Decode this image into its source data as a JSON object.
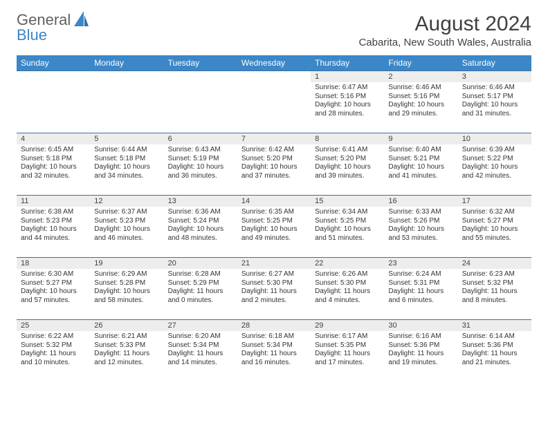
{
  "brand": {
    "line1": "General",
    "line2": "Blue"
  },
  "title": "August 2024",
  "location": "Cabarita, New South Wales, Australia",
  "weekdays": [
    "Sunday",
    "Monday",
    "Tuesday",
    "Wednesday",
    "Thursday",
    "Friday",
    "Saturday"
  ],
  "colors": {
    "header_bg": "#3b87c8",
    "header_fg": "#ffffff",
    "daynum_bg": "#ededed",
    "rule": "#3b6fa0",
    "body_text": "#333333"
  },
  "weeks": [
    [
      {
        "n": "",
        "sunrise": "",
        "sunset": "",
        "daylight": ""
      },
      {
        "n": "",
        "sunrise": "",
        "sunset": "",
        "daylight": ""
      },
      {
        "n": "",
        "sunrise": "",
        "sunset": "",
        "daylight": ""
      },
      {
        "n": "",
        "sunrise": "",
        "sunset": "",
        "daylight": ""
      },
      {
        "n": "1",
        "sunrise": "6:47 AM",
        "sunset": "5:16 PM",
        "daylight": "10 hours and 28 minutes."
      },
      {
        "n": "2",
        "sunrise": "6:46 AM",
        "sunset": "5:16 PM",
        "daylight": "10 hours and 29 minutes."
      },
      {
        "n": "3",
        "sunrise": "6:46 AM",
        "sunset": "5:17 PM",
        "daylight": "10 hours and 31 minutes."
      }
    ],
    [
      {
        "n": "4",
        "sunrise": "6:45 AM",
        "sunset": "5:18 PM",
        "daylight": "10 hours and 32 minutes."
      },
      {
        "n": "5",
        "sunrise": "6:44 AM",
        "sunset": "5:18 PM",
        "daylight": "10 hours and 34 minutes."
      },
      {
        "n": "6",
        "sunrise": "6:43 AM",
        "sunset": "5:19 PM",
        "daylight": "10 hours and 36 minutes."
      },
      {
        "n": "7",
        "sunrise": "6:42 AM",
        "sunset": "5:20 PM",
        "daylight": "10 hours and 37 minutes."
      },
      {
        "n": "8",
        "sunrise": "6:41 AM",
        "sunset": "5:20 PM",
        "daylight": "10 hours and 39 minutes."
      },
      {
        "n": "9",
        "sunrise": "6:40 AM",
        "sunset": "5:21 PM",
        "daylight": "10 hours and 41 minutes."
      },
      {
        "n": "10",
        "sunrise": "6:39 AM",
        "sunset": "5:22 PM",
        "daylight": "10 hours and 42 minutes."
      }
    ],
    [
      {
        "n": "11",
        "sunrise": "6:38 AM",
        "sunset": "5:23 PM",
        "daylight": "10 hours and 44 minutes."
      },
      {
        "n": "12",
        "sunrise": "6:37 AM",
        "sunset": "5:23 PM",
        "daylight": "10 hours and 46 minutes."
      },
      {
        "n": "13",
        "sunrise": "6:36 AM",
        "sunset": "5:24 PM",
        "daylight": "10 hours and 48 minutes."
      },
      {
        "n": "14",
        "sunrise": "6:35 AM",
        "sunset": "5:25 PM",
        "daylight": "10 hours and 49 minutes."
      },
      {
        "n": "15",
        "sunrise": "6:34 AM",
        "sunset": "5:25 PM",
        "daylight": "10 hours and 51 minutes."
      },
      {
        "n": "16",
        "sunrise": "6:33 AM",
        "sunset": "5:26 PM",
        "daylight": "10 hours and 53 minutes."
      },
      {
        "n": "17",
        "sunrise": "6:32 AM",
        "sunset": "5:27 PM",
        "daylight": "10 hours and 55 minutes."
      }
    ],
    [
      {
        "n": "18",
        "sunrise": "6:30 AM",
        "sunset": "5:27 PM",
        "daylight": "10 hours and 57 minutes."
      },
      {
        "n": "19",
        "sunrise": "6:29 AM",
        "sunset": "5:28 PM",
        "daylight": "10 hours and 58 minutes."
      },
      {
        "n": "20",
        "sunrise": "6:28 AM",
        "sunset": "5:29 PM",
        "daylight": "11 hours and 0 minutes."
      },
      {
        "n": "21",
        "sunrise": "6:27 AM",
        "sunset": "5:30 PM",
        "daylight": "11 hours and 2 minutes."
      },
      {
        "n": "22",
        "sunrise": "6:26 AM",
        "sunset": "5:30 PM",
        "daylight": "11 hours and 4 minutes."
      },
      {
        "n": "23",
        "sunrise": "6:24 AM",
        "sunset": "5:31 PM",
        "daylight": "11 hours and 6 minutes."
      },
      {
        "n": "24",
        "sunrise": "6:23 AM",
        "sunset": "5:32 PM",
        "daylight": "11 hours and 8 minutes."
      }
    ],
    [
      {
        "n": "25",
        "sunrise": "6:22 AM",
        "sunset": "5:32 PM",
        "daylight": "11 hours and 10 minutes."
      },
      {
        "n": "26",
        "sunrise": "6:21 AM",
        "sunset": "5:33 PM",
        "daylight": "11 hours and 12 minutes."
      },
      {
        "n": "27",
        "sunrise": "6:20 AM",
        "sunset": "5:34 PM",
        "daylight": "11 hours and 14 minutes."
      },
      {
        "n": "28",
        "sunrise": "6:18 AM",
        "sunset": "5:34 PM",
        "daylight": "11 hours and 16 minutes."
      },
      {
        "n": "29",
        "sunrise": "6:17 AM",
        "sunset": "5:35 PM",
        "daylight": "11 hours and 17 minutes."
      },
      {
        "n": "30",
        "sunrise": "6:16 AM",
        "sunset": "5:36 PM",
        "daylight": "11 hours and 19 minutes."
      },
      {
        "n": "31",
        "sunrise": "6:14 AM",
        "sunset": "5:36 PM",
        "daylight": "11 hours and 21 minutes."
      }
    ]
  ],
  "labels": {
    "sunrise": "Sunrise:",
    "sunset": "Sunset:",
    "daylight": "Daylight:"
  }
}
